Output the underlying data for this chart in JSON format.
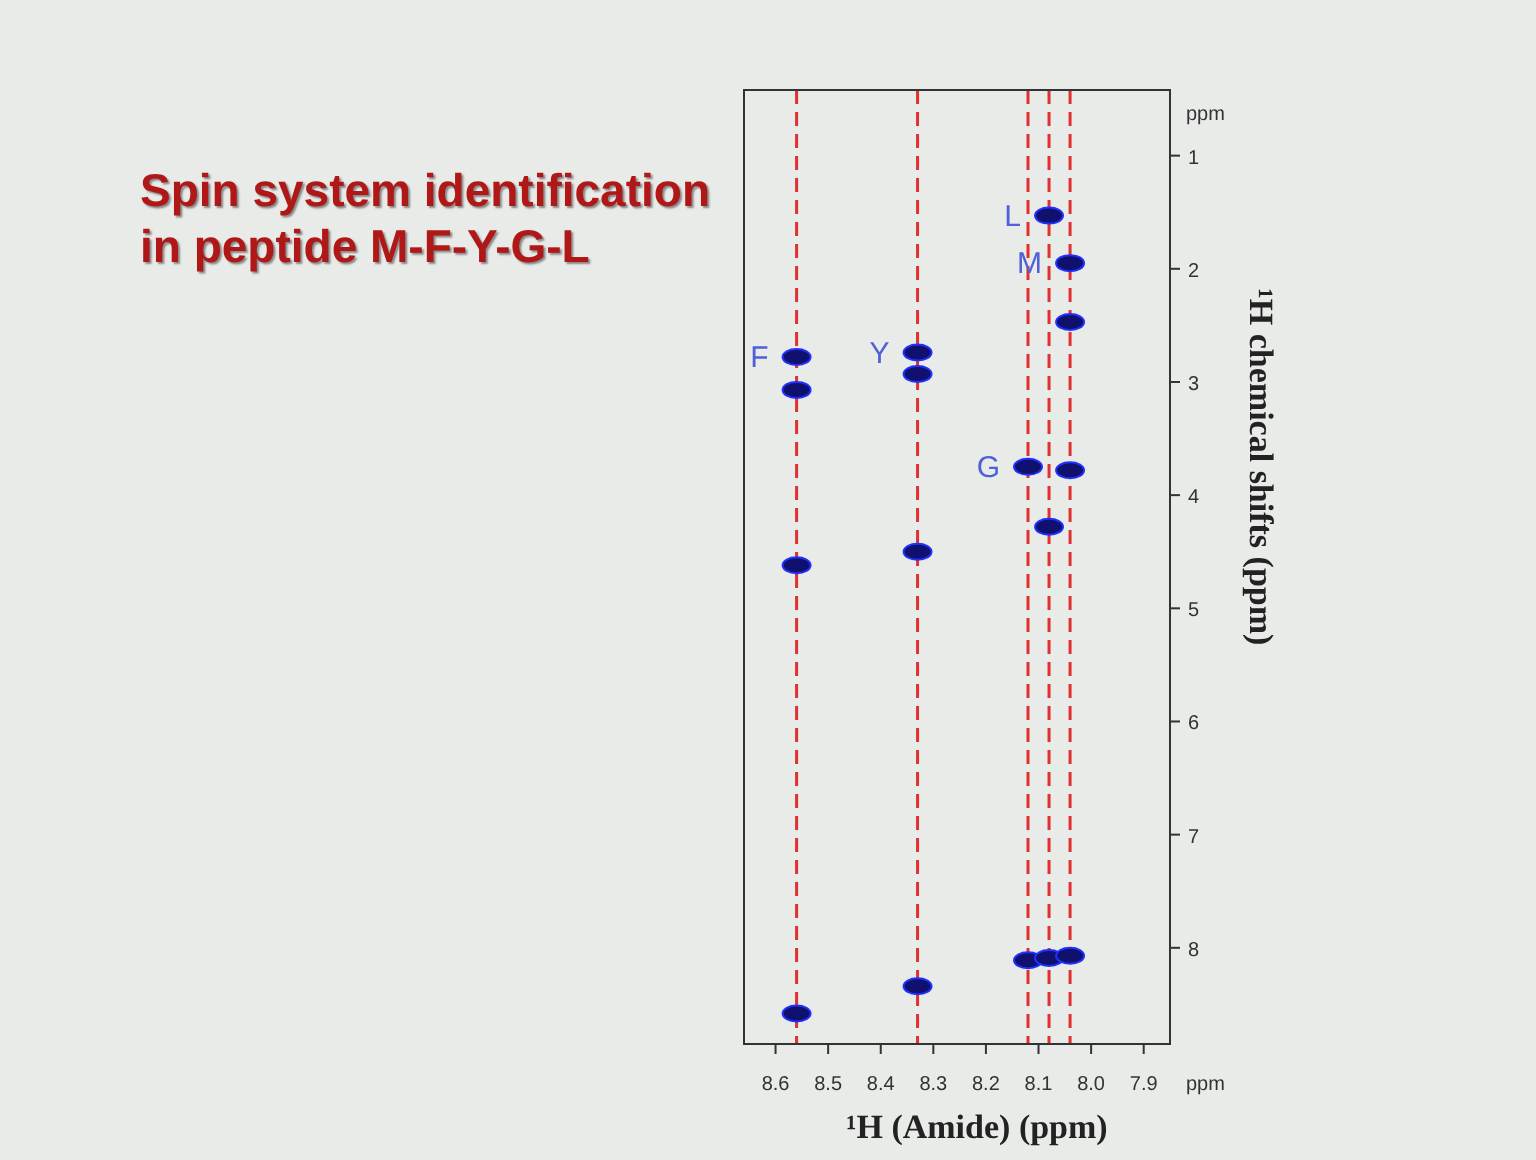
{
  "chart_data": {
    "type": "scatter",
    "title": "Spin system identification in peptide M-F-Y-G-L",
    "xlabel": "¹H (Amide) (ppm)",
    "ylabel": "¹H chemical shifts (ppm)",
    "annotations": [
      "ppm",
      "ppm"
    ],
    "xlim": [
      8.66,
      7.85
    ],
    "xticks": [
      8.6,
      8.5,
      8.4,
      8.3,
      8.2,
      8.1,
      {
        "value": 8,
        "label": "8.0"
      },
      7.9
    ],
    "ylim": [
      8.85,
      0.42
    ],
    "yticks": [
      1,
      2,
      3,
      4,
      5,
      6,
      7,
      8
    ],
    "grid": false,
    "marker": "circle",
    "series": [
      {
        "name": "F",
        "color": "#10106e",
        "x": [
          8.56,
          8.56,
          8.56,
          8.56
        ],
        "values": [
          2.78,
          3.07,
          4.62,
          8.58
        ]
      },
      {
        "name": "Y",
        "color": "#10106e",
        "x": [
          8.33,
          8.33,
          8.33,
          8.33
        ],
        "values": [
          2.74,
          2.93,
          4.5,
          8.34
        ]
      },
      {
        "name": "G",
        "color": "#10106e",
        "x": [
          8.12,
          8.12
        ],
        "values": [
          3.75,
          8.11
        ]
      },
      {
        "name": "L",
        "color": "#10106e",
        "x": [
          8.08,
          8.08,
          8.08
        ],
        "values": [
          1.53,
          4.28,
          8.09
        ]
      },
      {
        "name": "M",
        "color": "#10106e",
        "x": [
          8.04,
          8.04,
          8.04,
          8.04
        ],
        "values": [
          1.95,
          2.47,
          3.78,
          8.07
        ]
      }
    ],
    "ref_lines": [
      {
        "axis": "x",
        "value": 8.56,
        "color": "#e03030",
        "line_style": "dashed"
      },
      {
        "axis": "x",
        "value": 8.33,
        "color": "#e03030",
        "line_style": "dashed"
      },
      {
        "axis": "x",
        "value": 8.12,
        "color": "#e03030",
        "line_style": "dashed"
      },
      {
        "axis": "x",
        "value": 8.08,
        "color": "#e03030",
        "line_style": "dashed"
      },
      {
        "axis": "x",
        "value": 8.04,
        "color": "#e03030",
        "line_style": "dashed"
      }
    ]
  }
}
